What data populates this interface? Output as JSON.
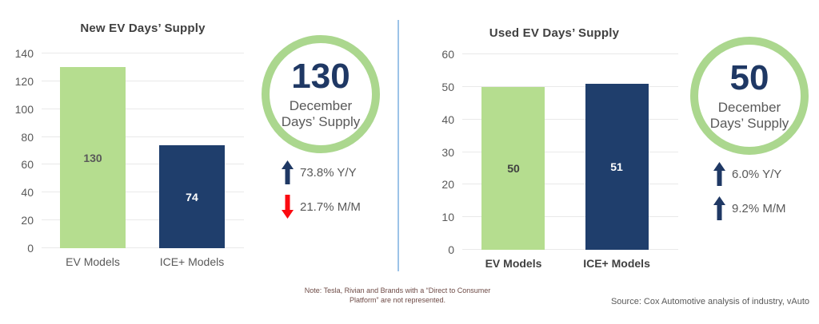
{
  "chart_data": [
    {
      "type": "bar",
      "title": "New EV Days’ Supply",
      "categories": [
        "EV Models",
        "ICE+ Models"
      ],
      "values": [
        130,
        74
      ],
      "bar_labels": [
        "130",
        "74"
      ],
      "yticks": [
        0,
        20,
        40,
        60,
        80,
        100,
        120,
        140
      ],
      "ylim": [
        0,
        140
      ],
      "grid": true,
      "legend": false,
      "xlabel": "",
      "ylabel": "",
      "bar_colors": [
        "#b5dd8f",
        "#1f3e6c"
      ],
      "bar_label_colors": [
        "#595959",
        "#ffffff"
      ],
      "category_label_bold": false
    },
    {
      "type": "bar",
      "title": "Used EV Days’ Supply",
      "categories": [
        "EV Models",
        "ICE+ Models"
      ],
      "values": [
        50,
        51
      ],
      "bar_labels": [
        "50",
        "51"
      ],
      "yticks": [
        0,
        10,
        20,
        30,
        40,
        50,
        60
      ],
      "ylim": [
        0,
        60
      ],
      "grid": true,
      "legend": false,
      "xlabel": "",
      "ylabel": "",
      "bar_colors": [
        "#b5dd8f",
        "#1f3e6c"
      ],
      "bar_label_colors": [
        "#404040",
        "#ffffff"
      ],
      "category_label_bold": true
    }
  ],
  "badges": [
    {
      "number": "130",
      "label_line1": "December",
      "label_line2": "Days’ Supply",
      "stats": [
        {
          "text": "73.8% Y/Y",
          "direction": "up",
          "color": "#1f3864"
        },
        {
          "text": "21.7% M/M",
          "direction": "down",
          "color": "#fb0a10"
        }
      ]
    },
    {
      "number": "50",
      "label_line1": "December",
      "label_line2": "Days’ Supply",
      "stats": [
        {
          "text": "6.0% Y/Y",
          "direction": "up",
          "color": "#1f3864"
        },
        {
          "text": "9.2% M/M",
          "direction": "up",
          "color": "#1f3864"
        }
      ]
    }
  ],
  "footer": {
    "note_line1": "Note: Tesla, Rivian and Brands with a “Direct to Consumer",
    "note_line2": "Platform” are not represented.",
    "source": "Source: Cox Automotive analysis of industry, vAuto"
  },
  "colors": {
    "bar_green": "#b5dd8f",
    "bar_navy": "#1f3e6c",
    "badge_ring_green": "#abd78e",
    "badge_number_navy": "#1f3864",
    "divider_blue": "#9cc3e8",
    "up_arrow_navy": "#1f3864",
    "down_arrow_red": "#fb0a10",
    "note_text": "#6e4b46",
    "muted_text": "#595959"
  }
}
